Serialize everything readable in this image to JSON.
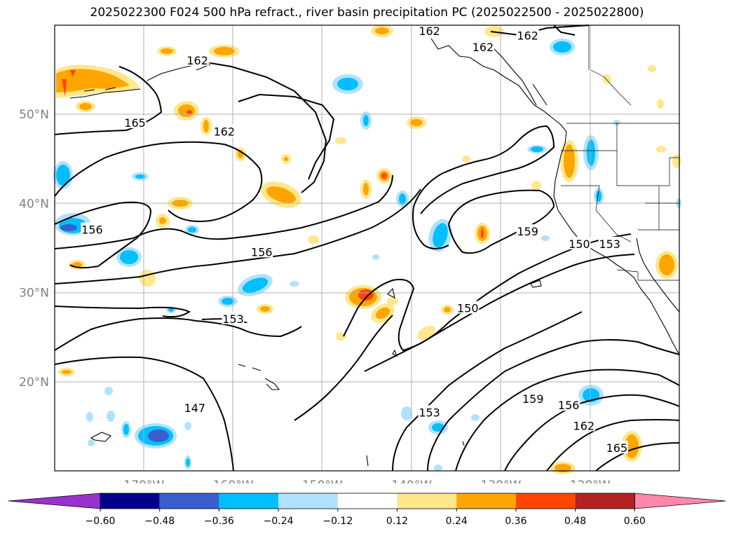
{
  "title": "2025022300 F024 500 hPa refract., river basin precipitation PC (2025022500 - 2025022800)",
  "map": {
    "lon_range": [
      -180,
      -110
    ],
    "lat_range": [
      10,
      60
    ],
    "lat_ticks": [
      {
        "value": 50,
        "label": "50°N"
      },
      {
        "value": 40,
        "label": "40°N"
      },
      {
        "value": 30,
        "label": "30°N"
      },
      {
        "value": 20,
        "label": "20°N"
      }
    ],
    "lon_ticks": [
      {
        "value": -170,
        "label": "170°W"
      },
      {
        "value": -160,
        "label": "160°W"
      },
      {
        "value": -150,
        "label": "150°W"
      },
      {
        "value": -140,
        "label": "140°W"
      },
      {
        "value": -130,
        "label": "130°W"
      },
      {
        "value": -120,
        "label": "120°W"
      }
    ],
    "gridlines": true,
    "contour_labels": [
      {
        "text": "162",
        "lon": -164,
        "lat": 56
      },
      {
        "text": "165",
        "lon": -171,
        "lat": 49
      },
      {
        "text": "162",
        "lon": -161,
        "lat": 48
      },
      {
        "text": "162",
        "lon": -138,
        "lat": 59.3
      },
      {
        "text": "162",
        "lon": -132,
        "lat": 57.5
      },
      {
        "text": "162",
        "lon": -127,
        "lat": 58.8
      },
      {
        "text": "156",
        "lon": -175.8,
        "lat": 37
      },
      {
        "text": "156",
        "lon": -156.8,
        "lat": 34.5
      },
      {
        "text": "153",
        "lon": -160,
        "lat": 27
      },
      {
        "text": "147",
        "lon": -164.3,
        "lat": 17
      },
      {
        "text": "159",
        "lon": -127,
        "lat": 36.8
      },
      {
        "text": "150",
        "lon": -121.2,
        "lat": 35.4
      },
      {
        "text": "153",
        "lon": -117.8,
        "lat": 35.4
      },
      {
        "text": "150",
        "lon": -133.7,
        "lat": 28.2
      },
      {
        "text": "153",
        "lon": -138,
        "lat": 16.5
      },
      {
        "text": "159",
        "lon": -126.4,
        "lat": 18
      },
      {
        "text": "156",
        "lon": -122.4,
        "lat": 17.3
      },
      {
        "text": "162",
        "lon": -120.7,
        "lat": 15
      },
      {
        "text": "165",
        "lon": -117,
        "lat": 12.5
      }
    ]
  },
  "colorbar": {
    "ticks": [
      "−0.60",
      "−0.48",
      "−0.36",
      "−0.24",
      "−0.12",
      "0.12",
      "0.24",
      "0.36",
      "0.48",
      "0.60"
    ],
    "colors": [
      "#9932cc",
      "#00008b",
      "#3a5fcd",
      "#00bfff",
      "#b0e2ff",
      "#ffffff",
      "#ffe78c",
      "#ffa500",
      "#ff4500",
      "#b22222",
      "#ff88aa"
    ]
  }
}
